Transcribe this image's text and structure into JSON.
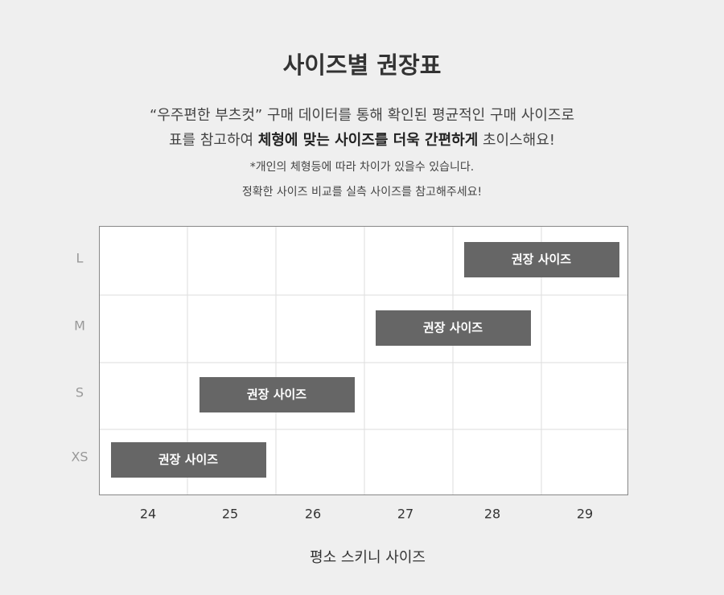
{
  "title": "사이즈별 권장표",
  "intro": {
    "line1": "“우주편한 부츠컷” 구매 데이터를 통해 확인된 평균적인 구매 사이즈로",
    "line2": {
      "before": "표를 참고하여 ",
      "bold": "체형에 맞는 사이즈를 더욱 간편하게",
      "after": " 초이스해요!"
    },
    "note1": "*개인의 체형등에 따라 차이가 있을수 있습니다.",
    "note2": "정확한 사이즈 비교를 실측 사이즈를 참고해주세요!"
  },
  "table": {
    "rows": [
      "L",
      "M",
      "S",
      "XS"
    ],
    "columns": [
      "24",
      "25",
      "26",
      "27",
      "28",
      "29"
    ],
    "recommendations": [
      "권장 사이즈",
      "권장 사이즈",
      "권장 사이즈",
      "권장 사이즈"
    ]
  },
  "x_label": "평소 스키니 사이즈"
}
